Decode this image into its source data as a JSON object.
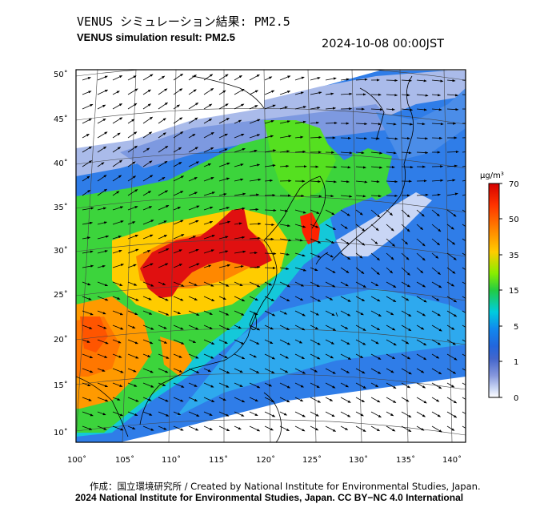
{
  "header": {
    "title_ja": "VENUS シミュレーション結果: PM2.5",
    "title_en": "VENUS simulation result: PM2.5",
    "datetime": "2024-10-08 00:00JST"
  },
  "map": {
    "lat_labels": [
      "50˚",
      "45˚",
      "40˚",
      "35˚",
      "30˚",
      "25˚",
      "20˚",
      "15˚",
      "10˚"
    ],
    "lon_labels": [
      "100˚",
      "105˚",
      "110˚",
      "115˚",
      "120˚",
      "125˚",
      "130˚",
      "135˚",
      "140˚"
    ],
    "unit": "µg/m³"
  },
  "colorbar": {
    "ticks": [
      "70",
      "50",
      "35",
      "15",
      "5",
      "1",
      "0"
    ],
    "colors": [
      "#d40000",
      "#ff3300",
      "#ff8800",
      "#ffcc00",
      "#88ee00",
      "#22cc44",
      "#00ccdd",
      "#1188ee",
      "#2266dd",
      "#4466cc",
      "#8899dd",
      "#ccd8f5",
      "#ffffff"
    ]
  },
  "footer": {
    "credit_line": "作成：国立環境研究所 / Created by National Institute for Environmental Studies, Japan.",
    "copyright_line": "2024 National Institute for Environmental Studies, Japan. CC BY−NC 4.0 International"
  }
}
